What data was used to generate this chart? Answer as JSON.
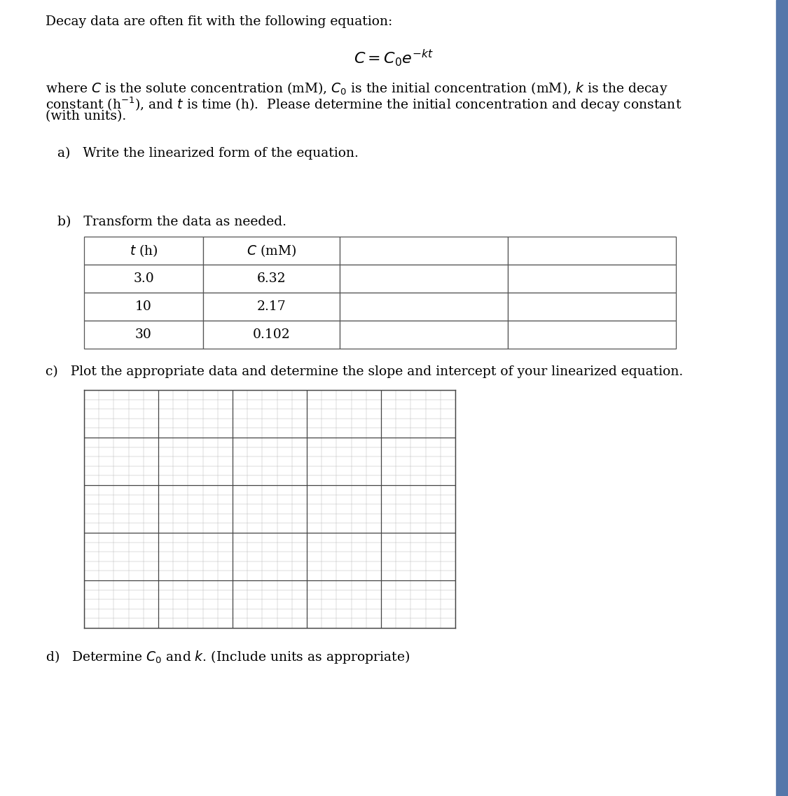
{
  "page_background": "#ffffff",
  "title_text": "Decay data are often fit with the following equation:",
  "part_a_text": "a)   Write the linearized form of the equation.",
  "part_b_text": "b)   Transform the data as needed.",
  "table_col1_header": "t (h)",
  "table_col2_header": "C (mM)",
  "table_data": [
    [
      "3.0",
      "6.32"
    ],
    [
      "10",
      "2.17"
    ],
    [
      "30",
      "0.102"
    ]
  ],
  "part_c_text": "c)   Plot the appropriate data and determine the slope and intercept of your linearized equation.",
  "part_d_text": "d)   Determine $C_0$ and $k$. (Include units as appropriate)",
  "grid_major_color": "#444444",
  "grid_minor_color": "#bbbbbb",
  "grid_major_every": 5,
  "grid_cols": 25,
  "grid_rows": 25,
  "right_bar_color": "#5577aa",
  "font_size": 13.5
}
